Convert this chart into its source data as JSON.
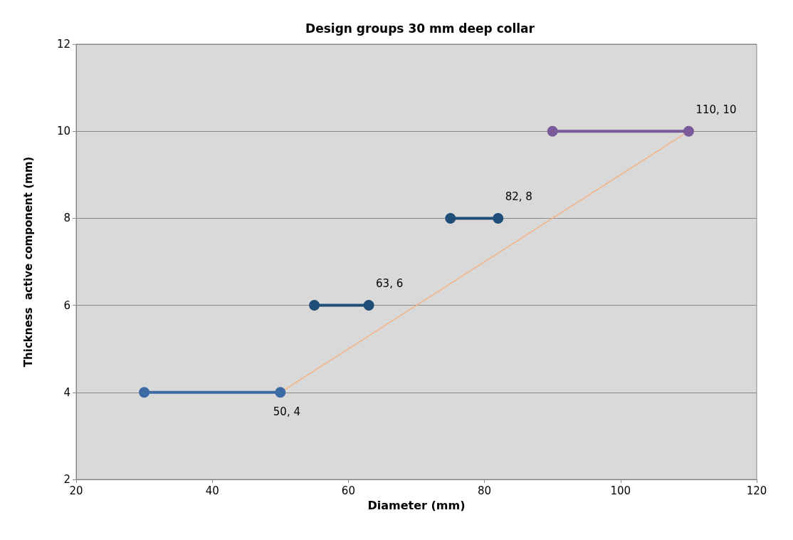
{
  "chart_data": {
    "type": "line",
    "title": "Design groups 30 mm deep collar",
    "xlabel": "Diameter (mm)",
    "ylabel": "Thickness  active component (mm)",
    "series": [
      {
        "x": [
          30,
          50
        ],
        "values": [
          4,
          4
        ],
        "color": "#3c6aa5",
        "marker": "circle"
      },
      {
        "x": [
          55,
          63
        ],
        "values": [
          6,
          6
        ],
        "color": "#1f4e79",
        "marker": "circle"
      },
      {
        "x": [
          75,
          82
        ],
        "values": [
          8,
          8
        ],
        "color": "#1f4e79",
        "marker": "circle"
      },
      {
        "x": [
          90,
          110
        ],
        "values": [
          10,
          10
        ],
        "color": "#7a5a9a",
        "marker": "circle"
      },
      {
        "x": [
          50,
          110
        ],
        "values": [
          4,
          10
        ],
        "color": "#f4b183",
        "marker": "none"
      }
    ],
    "annotations": [
      {
        "text": "50, 4",
        "x": 50,
        "y": 4
      },
      {
        "text": "63, 6",
        "x": 63,
        "y": 6
      },
      {
        "text": "82, 8",
        "x": 82,
        "y": 8
      },
      {
        "text": "110, 10",
        "x": 110,
        "y": 10
      }
    ],
    "xlim": [
      20,
      120
    ],
    "xticks": [
      20,
      40,
      60,
      80,
      100,
      120
    ],
    "ylim": [
      2,
      12
    ],
    "yticks": [
      2,
      4,
      6,
      8,
      10,
      12
    ],
    "grid": "y"
  }
}
